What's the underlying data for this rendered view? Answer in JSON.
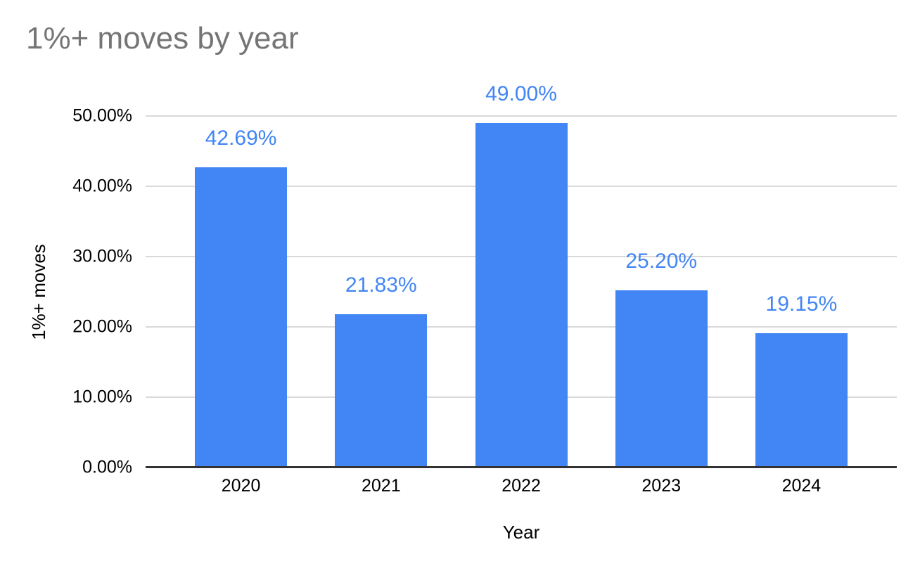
{
  "chart_data": {
    "type": "bar",
    "title": "1%+ moves by year",
    "xlabel": "Year",
    "ylabel": "1%+ moves",
    "categories": [
      "2020",
      "2021",
      "2022",
      "2023",
      "2024"
    ],
    "values": [
      42.69,
      21.83,
      49.0,
      25.2,
      19.15
    ],
    "data_labels": [
      "42.69%",
      "21.83%",
      "49.00%",
      "25.20%",
      "19.15%"
    ],
    "ylim": [
      0,
      50
    ],
    "yticks": [
      0,
      10,
      20,
      30,
      40,
      50
    ],
    "ytick_labels": [
      "0.00%",
      "10.00%",
      "20.00%",
      "30.00%",
      "40.00%",
      "50.00%"
    ],
    "grid": true,
    "legend": "none",
    "colors": {
      "bar": "#4285F4",
      "data_label": "#4285F4",
      "title": "#757575",
      "gridline": "#d9d9d9",
      "axis_line": "#333333",
      "tick_text": "#000000",
      "background": "#ffffff"
    }
  }
}
